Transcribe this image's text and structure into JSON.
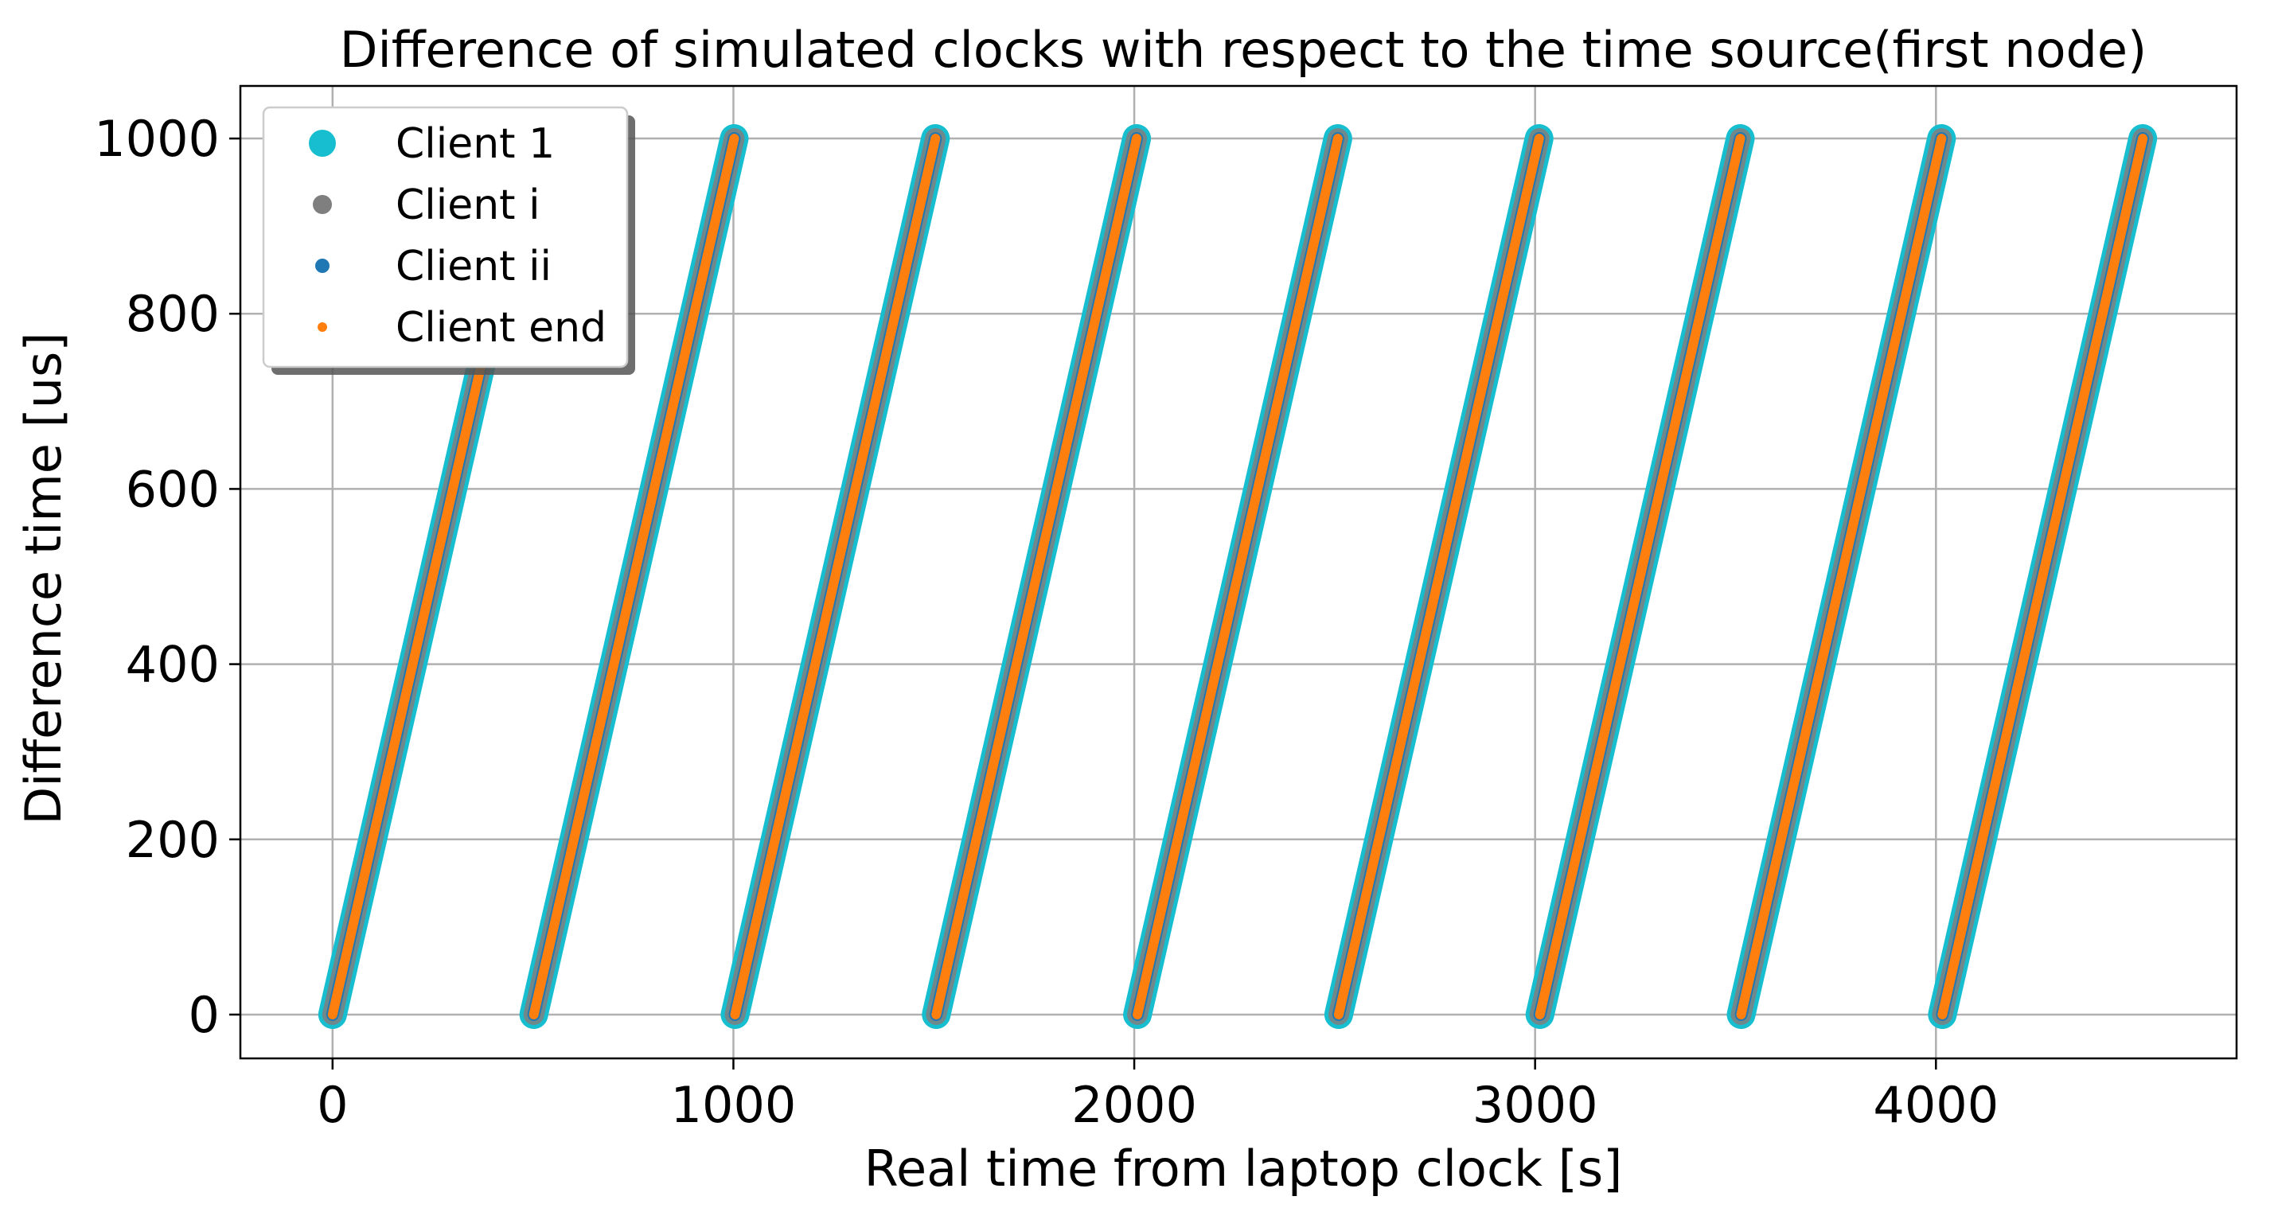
{
  "chart_data": {
    "type": "scatter",
    "title": "Difference of simulated clocks with respect to the time source(first node)",
    "xlabel": "Real time from laptop clock [s]",
    "ylabel": "Difference time [us]",
    "xlim": [
      -230,
      4750
    ],
    "ylim": [
      -50,
      1060
    ],
    "xticks": [
      0,
      1000,
      2000,
      3000,
      4000
    ],
    "yticks": [
      0,
      200,
      400,
      600,
      800,
      1000
    ],
    "xtick_labels": [
      "0",
      "1000",
      "2000",
      "3000",
      "4000"
    ],
    "ytick_labels": [
      "0",
      "200",
      "400",
      "600",
      "800",
      "1000"
    ],
    "grid": true,
    "legend_position": "top-left",
    "sawtooth": {
      "segment_starts": [
        0,
        502,
        1004,
        1506,
        2008,
        2510,
        3012,
        3514,
        4016
      ],
      "segment_duration": 500,
      "min_value": 0,
      "max_value": 1000
    },
    "series": [
      {
        "name": "Client 1",
        "color": "#17becf",
        "marker_size": "large"
      },
      {
        "name": "Client i",
        "color": "#7f7f7f",
        "marker_size": "medium"
      },
      {
        "name": "Client ii",
        "color": "#1f77b4",
        "marker_size": "small"
      },
      {
        "name": "Client end",
        "color": "#ff7f0e",
        "marker_size": "tiny"
      }
    ]
  }
}
